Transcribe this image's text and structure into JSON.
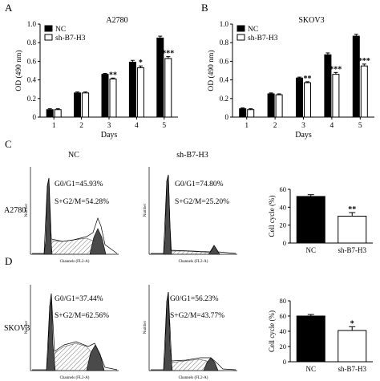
{
  "panels": {
    "A": "A",
    "B": "B",
    "C": "C",
    "D": "D"
  },
  "legend": {
    "nc": "NC",
    "sh": "sh-B7-H3"
  },
  "cell_lines": {
    "a2780": "A2780",
    "skov3": "SKOV3"
  },
  "flow": {
    "col_nc": "NC",
    "col_sh": "sh-B7-H3",
    "x_axis_label": "Channels (FL2-A)",
    "y_axis_label": "Number",
    "a2780_nc": {
      "g0g1": "G0/G1=45.93%",
      "sg2m": "S+G2/M=54.28%"
    },
    "a2780_sh": {
      "g0g1": "G0/G1=74.80%",
      "sg2m": "S+G2/M=25.20%"
    },
    "skov3_nc": {
      "g0g1": "G0/G1=37.44%",
      "sg2m": "S+G2/M=62.56%"
    },
    "skov3_sh": {
      "g0g1": "G0/G1=56.23%",
      "sg2m": "S+G2/M=43.77%"
    }
  },
  "chart_data": [
    {
      "id": "A",
      "type": "bar",
      "title": "A2780",
      "xlabel": "Days",
      "ylabel": "OD (490 nm)",
      "categories": [
        "1",
        "2",
        "3",
        "4",
        "5"
      ],
      "ylim": [
        0,
        1.0
      ],
      "yticks": [
        "0",
        "0.2",
        "0.4",
        "0.6",
        "0.8",
        "1.0"
      ],
      "series": [
        {
          "name": "NC",
          "values": [
            0.08,
            0.26,
            0.46,
            0.59,
            0.85
          ],
          "errors": [
            0.01,
            0.01,
            0.01,
            0.02,
            0.02
          ]
        },
        {
          "name": "sh-B7-H3",
          "values": [
            0.08,
            0.26,
            0.41,
            0.53,
            0.63
          ],
          "errors": [
            0.01,
            0.01,
            0.01,
            0.02,
            0.02
          ]
        }
      ],
      "significance": [
        "",
        "",
        "**",
        "*",
        "***"
      ],
      "legend": "top-left"
    },
    {
      "id": "B",
      "type": "bar",
      "title": "SKOV3",
      "xlabel": "Days",
      "ylabel": "OD (490 nm)",
      "categories": [
        "1",
        "2",
        "3",
        "4",
        "5"
      ],
      "ylim": [
        0,
        1.0
      ],
      "yticks": [
        "0",
        "0.2",
        "0.4",
        "0.6",
        "0.8",
        "1.0"
      ],
      "series": [
        {
          "name": "NC",
          "values": [
            0.09,
            0.25,
            0.42,
            0.67,
            0.87
          ],
          "errors": [
            0.01,
            0.01,
            0.01,
            0.02,
            0.02
          ]
        },
        {
          "name": "sh-B7-H3",
          "values": [
            0.08,
            0.24,
            0.37,
            0.46,
            0.55
          ],
          "errors": [
            0.01,
            0.01,
            0.01,
            0.02,
            0.02
          ]
        }
      ],
      "significance": [
        "",
        "",
        "**",
        "***",
        "***"
      ],
      "legend": "top-left"
    },
    {
      "id": "C",
      "type": "bar",
      "ylabel": "Cell cycle (%)",
      "categories": [
        "NC",
        "sh-B7-H3"
      ],
      "ylim": [
        0,
        60
      ],
      "yticks": [
        "0",
        "20",
        "40",
        "60"
      ],
      "values": [
        52,
        30
      ],
      "errors": [
        2,
        4
      ],
      "colors": [
        "#000000",
        "#ffffff"
      ],
      "significance": [
        "",
        "**"
      ]
    },
    {
      "id": "D",
      "type": "bar",
      "ylabel": "Cell cycle (%)",
      "categories": [
        "NC",
        "sh-B7-H3"
      ],
      "ylim": [
        0,
        80
      ],
      "yticks": [
        "0",
        "20",
        "40",
        "60",
        "80"
      ],
      "values": [
        60,
        41
      ],
      "errors": [
        2,
        5
      ],
      "colors": [
        "#000000",
        "#ffffff"
      ],
      "significance": [
        "",
        "*"
      ]
    }
  ]
}
